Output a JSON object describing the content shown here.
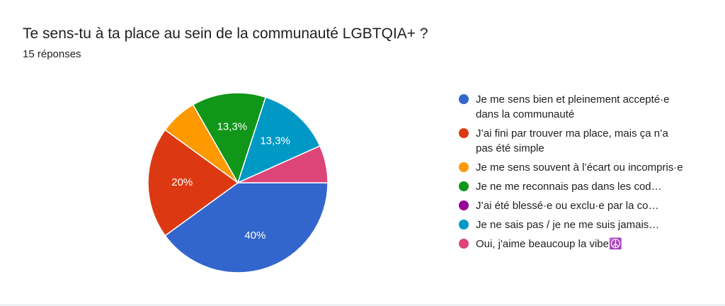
{
  "chart_data": {
    "type": "pie",
    "title": "Te sens-tu à ta place au sein de la communauté LGBTQIA+ ?",
    "subtitle": "15 réponses",
    "categories": [
      "Je me sens bien et pleinement accepté·e dans la communauté",
      "J’ai fini par trouver ma place, mais ça n’a pas été simple",
      "Je me sens souvent à l’écart ou incompris·e",
      "Je ne me reconnais pas dans les cod…",
      "J’ai été blessé·e ou exclu·e par la co…",
      "Je ne sais pas / je ne me suis jamais…",
      "Oui, j'aime beaucoup la vibe☮️"
    ],
    "values": [
      40,
      20,
      6.7,
      13.3,
      0,
      13.3,
      6.7
    ],
    "value_labels": [
      "40%",
      "20%",
      null,
      "13,3%",
      null,
      "13,3%",
      null
    ],
    "colors": [
      "#3366cc",
      "#dc3912",
      "#ff9900",
      "#109618",
      "#990099",
      "#0099c6",
      "#dd4477"
    ],
    "legend": "right"
  }
}
